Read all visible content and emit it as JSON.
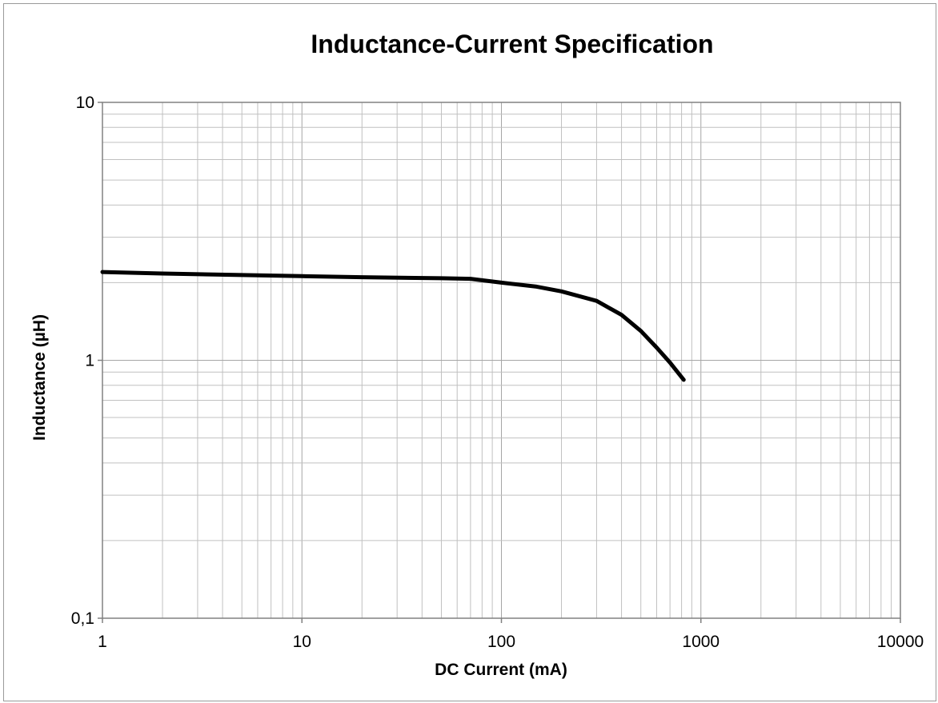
{
  "chart_data": {
    "type": "line",
    "title": "Inductance-Current Specification",
    "xlabel": "DC Current (mA)",
    "ylabel": "Inductance (µH)",
    "x_scale": "log",
    "y_scale": "log",
    "xlim": [
      1,
      10000
    ],
    "ylim": [
      0.1,
      10
    ],
    "x_tick_labels": [
      "1",
      "10",
      "100",
      "1000",
      "10000"
    ],
    "y_tick_labels": [
      "10",
      "1",
      "0,1"
    ],
    "grid": true,
    "legend": "none",
    "line_color": "#000000",
    "series": [
      {
        "x": [
          1,
          2,
          5,
          10,
          20,
          50,
          70,
          100,
          150,
          200,
          300,
          400,
          500,
          600,
          700,
          820
        ],
        "y": [
          2.2,
          2.17,
          2.14,
          2.12,
          2.1,
          2.08,
          2.07,
          2.0,
          1.93,
          1.85,
          1.7,
          1.5,
          1.3,
          1.12,
          0.98,
          0.84
        ]
      }
    ]
  }
}
